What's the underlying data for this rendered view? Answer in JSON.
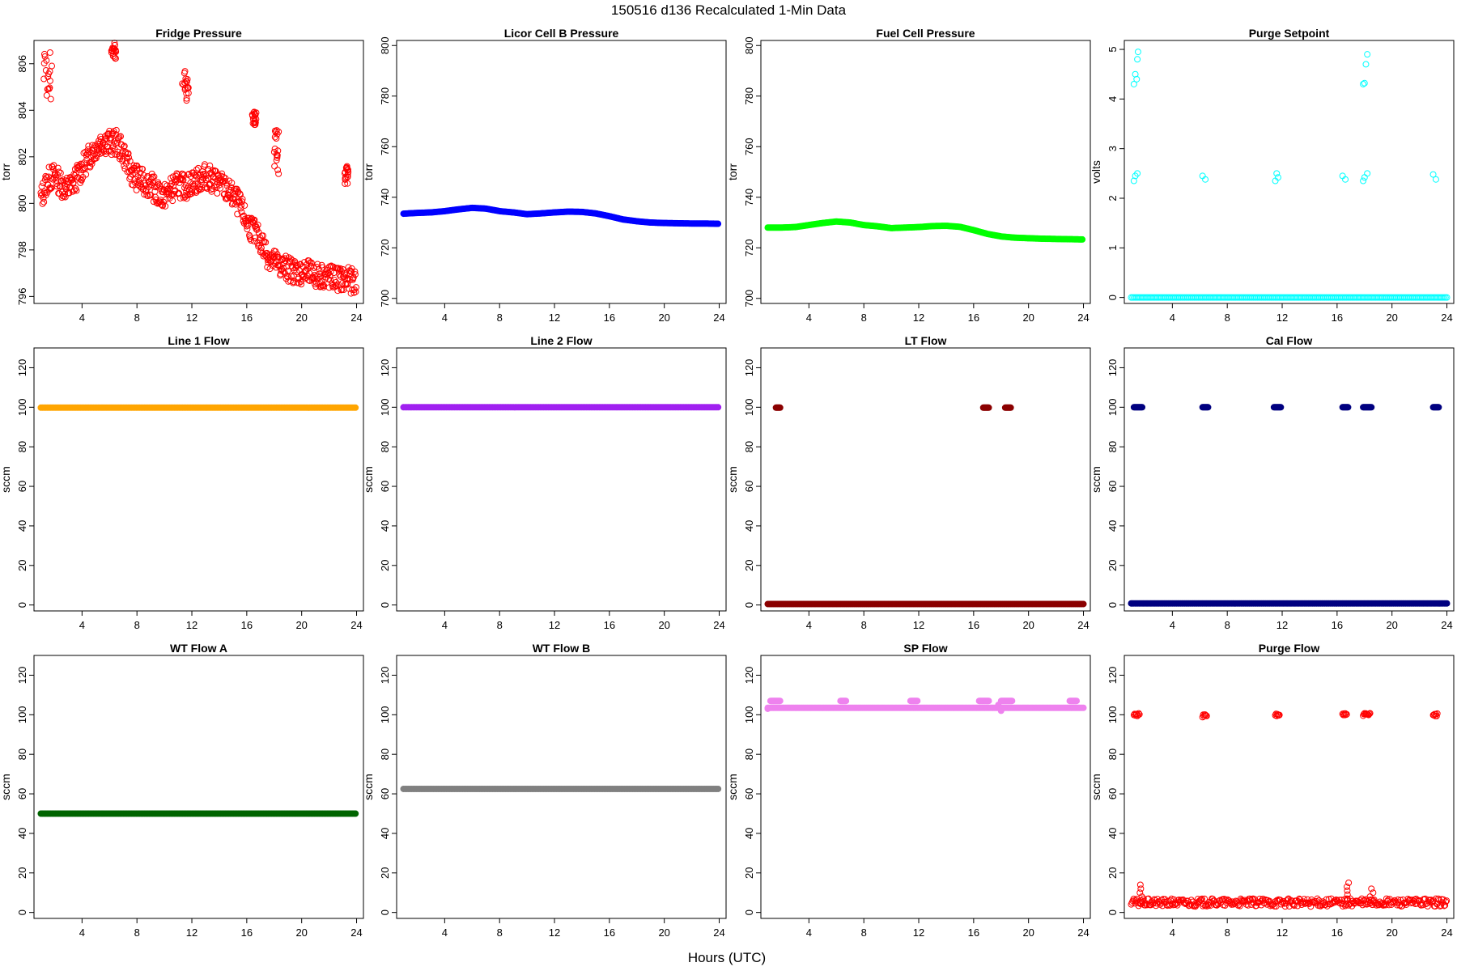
{
  "figure": {
    "title": "150516   d136   Recalculated 1-Min Data",
    "xlabel": "Hours (UTC)"
  },
  "chart_data": [
    {
      "type": "scatter",
      "title": "Fridge Pressure",
      "ylabel": "torr",
      "xlim": [
        0.5,
        24.5
      ],
      "ylim": [
        795.7,
        807.0
      ],
      "xticks": [
        4,
        8,
        12,
        16,
        20,
        24
      ],
      "yticks": [
        796,
        798,
        800,
        802,
        804,
        806
      ],
      "series": [
        {
          "color": "#ff0000",
          "marker": "open-circle",
          "x": [
            1,
            1.5,
            2,
            2.5,
            3,
            3.5,
            4,
            4.5,
            5,
            5.5,
            6,
            6.5,
            7,
            7.5,
            8,
            8.5,
            9,
            9.5,
            10,
            10.5,
            11,
            11.5,
            12,
            12.5,
            13,
            13.5,
            14,
            14.5,
            15,
            15.5,
            16,
            16.5,
            17,
            17.5,
            18,
            18.5,
            19,
            19.5,
            20,
            20.5,
            21,
            21.5,
            22,
            22.5,
            23,
            23.5,
            24
          ],
          "y": [
            800.2,
            801.0,
            801.2,
            800.8,
            800.6,
            801.0,
            801.5,
            802.0,
            802.4,
            802.7,
            802.6,
            802.6,
            802.2,
            801.4,
            801.1,
            800.9,
            800.8,
            800.4,
            800.3,
            800.6,
            800.8,
            800.7,
            800.9,
            801.0,
            801.2,
            801.0,
            800.9,
            800.6,
            800.3,
            799.9,
            799.2,
            798.8,
            798.4,
            797.8,
            797.5,
            797.3,
            797.2,
            797.1,
            797.0,
            797.0,
            796.9,
            796.9,
            796.8,
            796.8,
            796.7,
            796.7,
            796.6
          ],
          "clusters": [
            {
              "x_range": [
                1.2,
                1.8
              ],
              "y_range": [
                804.3,
                806.7
              ]
            },
            {
              "x_range": [
                6.1,
                6.5
              ],
              "y_range": [
                806.1,
                806.9
              ]
            },
            {
              "x_range": [
                11.3,
                11.8
              ],
              "y_range": [
                804.4,
                805.8
              ]
            },
            {
              "x_range": [
                16.4,
                16.7
              ],
              "y_range": [
                803.3,
                804.0
              ]
            },
            {
              "x_range": [
                18.0,
                18.4
              ],
              "y_range": [
                801.2,
                803.3
              ]
            },
            {
              "x_range": [
                23.1,
                23.4
              ],
              "y_range": [
                800.7,
                801.6
              ]
            }
          ]
        }
      ]
    },
    {
      "type": "scatter",
      "title": "Licor Cell B Pressure",
      "ylabel": "torr",
      "xlim": [
        0.5,
        24.5
      ],
      "ylim": [
        698,
        802
      ],
      "xticks": [
        4,
        8,
        12,
        16,
        20,
        24
      ],
      "yticks": [
        700,
        720,
        740,
        760,
        780,
        800
      ],
      "series": [
        {
          "color": "#0000ff",
          "marker": "filled-circle",
          "x": [
            1,
            2,
            3,
            4,
            5,
            6,
            7,
            8,
            9,
            10,
            11,
            12,
            13,
            14,
            15,
            16,
            17,
            18,
            19,
            20,
            21,
            22,
            23,
            24
          ],
          "y": [
            733.5,
            733.8,
            734.0,
            734.5,
            735.2,
            735.8,
            735.5,
            734.5,
            734.0,
            733.3,
            733.6,
            734.0,
            734.3,
            734.2,
            733.6,
            732.5,
            731.2,
            730.5,
            730.0,
            729.8,
            729.7,
            729.6,
            729.6,
            729.5
          ]
        }
      ]
    },
    {
      "type": "scatter",
      "title": "Fuel Cell Pressure",
      "ylabel": "torr",
      "xlim": [
        0.5,
        24.5
      ],
      "ylim": [
        698,
        802
      ],
      "xticks": [
        4,
        8,
        12,
        16,
        20,
        24
      ],
      "yticks": [
        700,
        720,
        740,
        760,
        780,
        800
      ],
      "series": [
        {
          "color": "#00ff00",
          "marker": "filled-circle",
          "x": [
            1,
            2,
            3,
            4,
            5,
            6,
            7,
            8,
            9,
            10,
            11,
            12,
            13,
            14,
            15,
            16,
            17,
            18,
            19,
            20,
            21,
            22,
            23,
            24
          ],
          "y": [
            728.0,
            728.0,
            728.2,
            729.0,
            729.8,
            730.4,
            730.0,
            729.0,
            728.5,
            727.8,
            728.0,
            728.2,
            728.6,
            728.7,
            728.3,
            727.0,
            725.5,
            724.5,
            724.0,
            723.8,
            723.6,
            723.5,
            723.4,
            723.3
          ]
        }
      ]
    },
    {
      "type": "scatter",
      "title": "Purge Setpoint",
      "ylabel": "volts",
      "xlim": [
        0.5,
        24.5
      ],
      "ylim": [
        -0.12,
        5.18
      ],
      "xticks": [
        4,
        8,
        12,
        16,
        20,
        24
      ],
      "yticks": [
        0,
        1,
        2,
        3,
        4,
        5
      ],
      "series": [
        {
          "color": "#00ffff",
          "marker": "open-circle",
          "baseline": 0,
          "points": [
            [
              1.2,
              2.35
            ],
            [
              1.3,
              2.45
            ],
            [
              1.45,
              2.5
            ],
            [
              1.2,
              4.3
            ],
            [
              1.3,
              4.5
            ],
            [
              1.4,
              4.4
            ],
            [
              1.45,
              4.8
            ],
            [
              1.5,
              4.95
            ],
            [
              6.2,
              2.45
            ],
            [
              6.4,
              2.38
            ],
            [
              11.5,
              2.35
            ],
            [
              11.6,
              2.5
            ],
            [
              11.7,
              2.42
            ],
            [
              16.4,
              2.45
            ],
            [
              16.6,
              2.38
            ],
            [
              17.9,
              2.35
            ],
            [
              18.0,
              2.42
            ],
            [
              18.2,
              2.5
            ],
            [
              17.9,
              4.3
            ],
            [
              18.0,
              4.32
            ],
            [
              18.1,
              4.7
            ],
            [
              18.2,
              4.9
            ],
            [
              23.0,
              2.48
            ],
            [
              23.2,
              2.38
            ]
          ]
        }
      ]
    },
    {
      "type": "scatter",
      "title": "Line 1 Flow",
      "ylabel": "sccm",
      "xlim": [
        0.5,
        24.5
      ],
      "ylim": [
        -3,
        130
      ],
      "xticks": [
        4,
        8,
        12,
        16,
        20,
        24
      ],
      "yticks": [
        0,
        20,
        40,
        60,
        80,
        100,
        120
      ],
      "series": [
        {
          "color": "#ffa500",
          "marker": "filled-circle",
          "x_range": [
            1,
            24
          ],
          "y": 99.8
        }
      ]
    },
    {
      "type": "scatter",
      "title": "Line 2 Flow",
      "ylabel": "sccm",
      "xlim": [
        0.5,
        24.5
      ],
      "ylim": [
        -3,
        130
      ],
      "xticks": [
        4,
        8,
        12,
        16,
        20,
        24
      ],
      "yticks": [
        0,
        20,
        40,
        60,
        80,
        100,
        120
      ],
      "series": [
        {
          "color": "#a020f0",
          "marker": "filled-circle",
          "x_range": [
            1,
            24
          ],
          "y": 100
        }
      ]
    },
    {
      "type": "scatter",
      "title": "LT Flow",
      "ylabel": "sccm",
      "xlim": [
        0.5,
        24.5
      ],
      "ylim": [
        -3,
        130
      ],
      "xticks": [
        4,
        8,
        12,
        16,
        20,
        24
      ],
      "yticks": [
        0,
        20,
        40,
        60,
        80,
        100,
        120
      ],
      "series": [
        {
          "color": "#8b0000",
          "marker": "filled-circle",
          "baseline": 0.5,
          "clusters": [
            [
              1.6,
              1.9,
              99.8
            ],
            [
              16.7,
              17.1,
              99.8
            ],
            [
              18.3,
              18.7,
              99.8
            ]
          ]
        }
      ]
    },
    {
      "type": "scatter",
      "title": "Cal Flow",
      "ylabel": "sccm",
      "xlim": [
        0.5,
        24.5
      ],
      "ylim": [
        -3,
        130
      ],
      "xticks": [
        4,
        8,
        12,
        16,
        20,
        24
      ],
      "yticks": [
        0,
        20,
        40,
        60,
        80,
        100,
        120
      ],
      "series": [
        {
          "color": "#000080",
          "marker": "filled-circle",
          "baseline": 0.8,
          "clusters": [
            [
              1.2,
              1.8,
              100
            ],
            [
              6.2,
              6.6,
              100
            ],
            [
              11.4,
              11.9,
              100
            ],
            [
              16.4,
              16.8,
              100
            ],
            [
              17.9,
              18.5,
              100
            ],
            [
              23.0,
              23.4,
              100
            ]
          ]
        }
      ]
    },
    {
      "type": "scatter",
      "title": "WT Flow A",
      "ylabel": "sccm",
      "xlim": [
        0.5,
        24.5
      ],
      "ylim": [
        -3,
        130
      ],
      "xticks": [
        4,
        8,
        12,
        16,
        20,
        24
      ],
      "yticks": [
        0,
        20,
        40,
        60,
        80,
        100,
        120
      ],
      "series": [
        {
          "color": "#006400",
          "marker": "filled-circle",
          "x_range": [
            1,
            24
          ],
          "y": 50
        }
      ]
    },
    {
      "type": "scatter",
      "title": "WT Flow B",
      "ylabel": "sccm",
      "xlim": [
        0.5,
        24.5
      ],
      "ylim": [
        -3,
        130
      ],
      "xticks": [
        4,
        8,
        12,
        16,
        20,
        24
      ],
      "yticks": [
        0,
        20,
        40,
        60,
        80,
        100,
        120
      ],
      "series": [
        {
          "color": "#808080",
          "marker": "filled-circle",
          "x_range": [
            1,
            24
          ],
          "y": 62.5
        }
      ]
    },
    {
      "type": "scatter",
      "title": "SP Flow",
      "ylabel": "sccm",
      "xlim": [
        0.5,
        24.5
      ],
      "ylim": [
        -3,
        130
      ],
      "xticks": [
        4,
        8,
        12,
        16,
        20,
        24
      ],
      "yticks": [
        0,
        20,
        40,
        60,
        80,
        100,
        120
      ],
      "series": [
        {
          "color": "#ee82ee",
          "marker": "filled-circle",
          "baseline": 103.5,
          "clusters": [
            [
              1.2,
              1.9,
              107
            ],
            [
              6.3,
              6.7,
              107
            ],
            [
              11.4,
              11.9,
              107
            ],
            [
              16.4,
              17.1,
              107
            ],
            [
              18.0,
              18.8,
              107
            ],
            [
              23.0,
              23.5,
              107
            ]
          ],
          "points": [
            [
              1.0,
              103
            ],
            [
              17.8,
              105
            ],
            [
              18.0,
              102
            ]
          ]
        }
      ]
    },
    {
      "type": "scatter",
      "title": "Purge Flow",
      "ylabel": "sccm",
      "xlim": [
        0.5,
        24.5
      ],
      "ylim": [
        -3,
        130
      ],
      "xticks": [
        4,
        8,
        12,
        16,
        20,
        24
      ],
      "yticks": [
        0,
        20,
        40,
        60,
        80,
        100,
        120
      ],
      "series": [
        {
          "color": "#ff0000",
          "marker": "open-circle",
          "baseline": 5,
          "clusters": [
            [
              1.2,
              1.6,
              100
            ],
            [
              6.2,
              6.5,
              99.5
            ],
            [
              11.5,
              11.8,
              100
            ],
            [
              16.4,
              16.7,
              100
            ],
            [
              17.9,
              18.4,
              100
            ],
            [
              23.0,
              23.3,
              100
            ]
          ],
          "spikes": [
            [
              1.7,
              14
            ],
            [
              16.8,
              15
            ],
            [
              18.5,
              12
            ]
          ]
        }
      ]
    }
  ]
}
